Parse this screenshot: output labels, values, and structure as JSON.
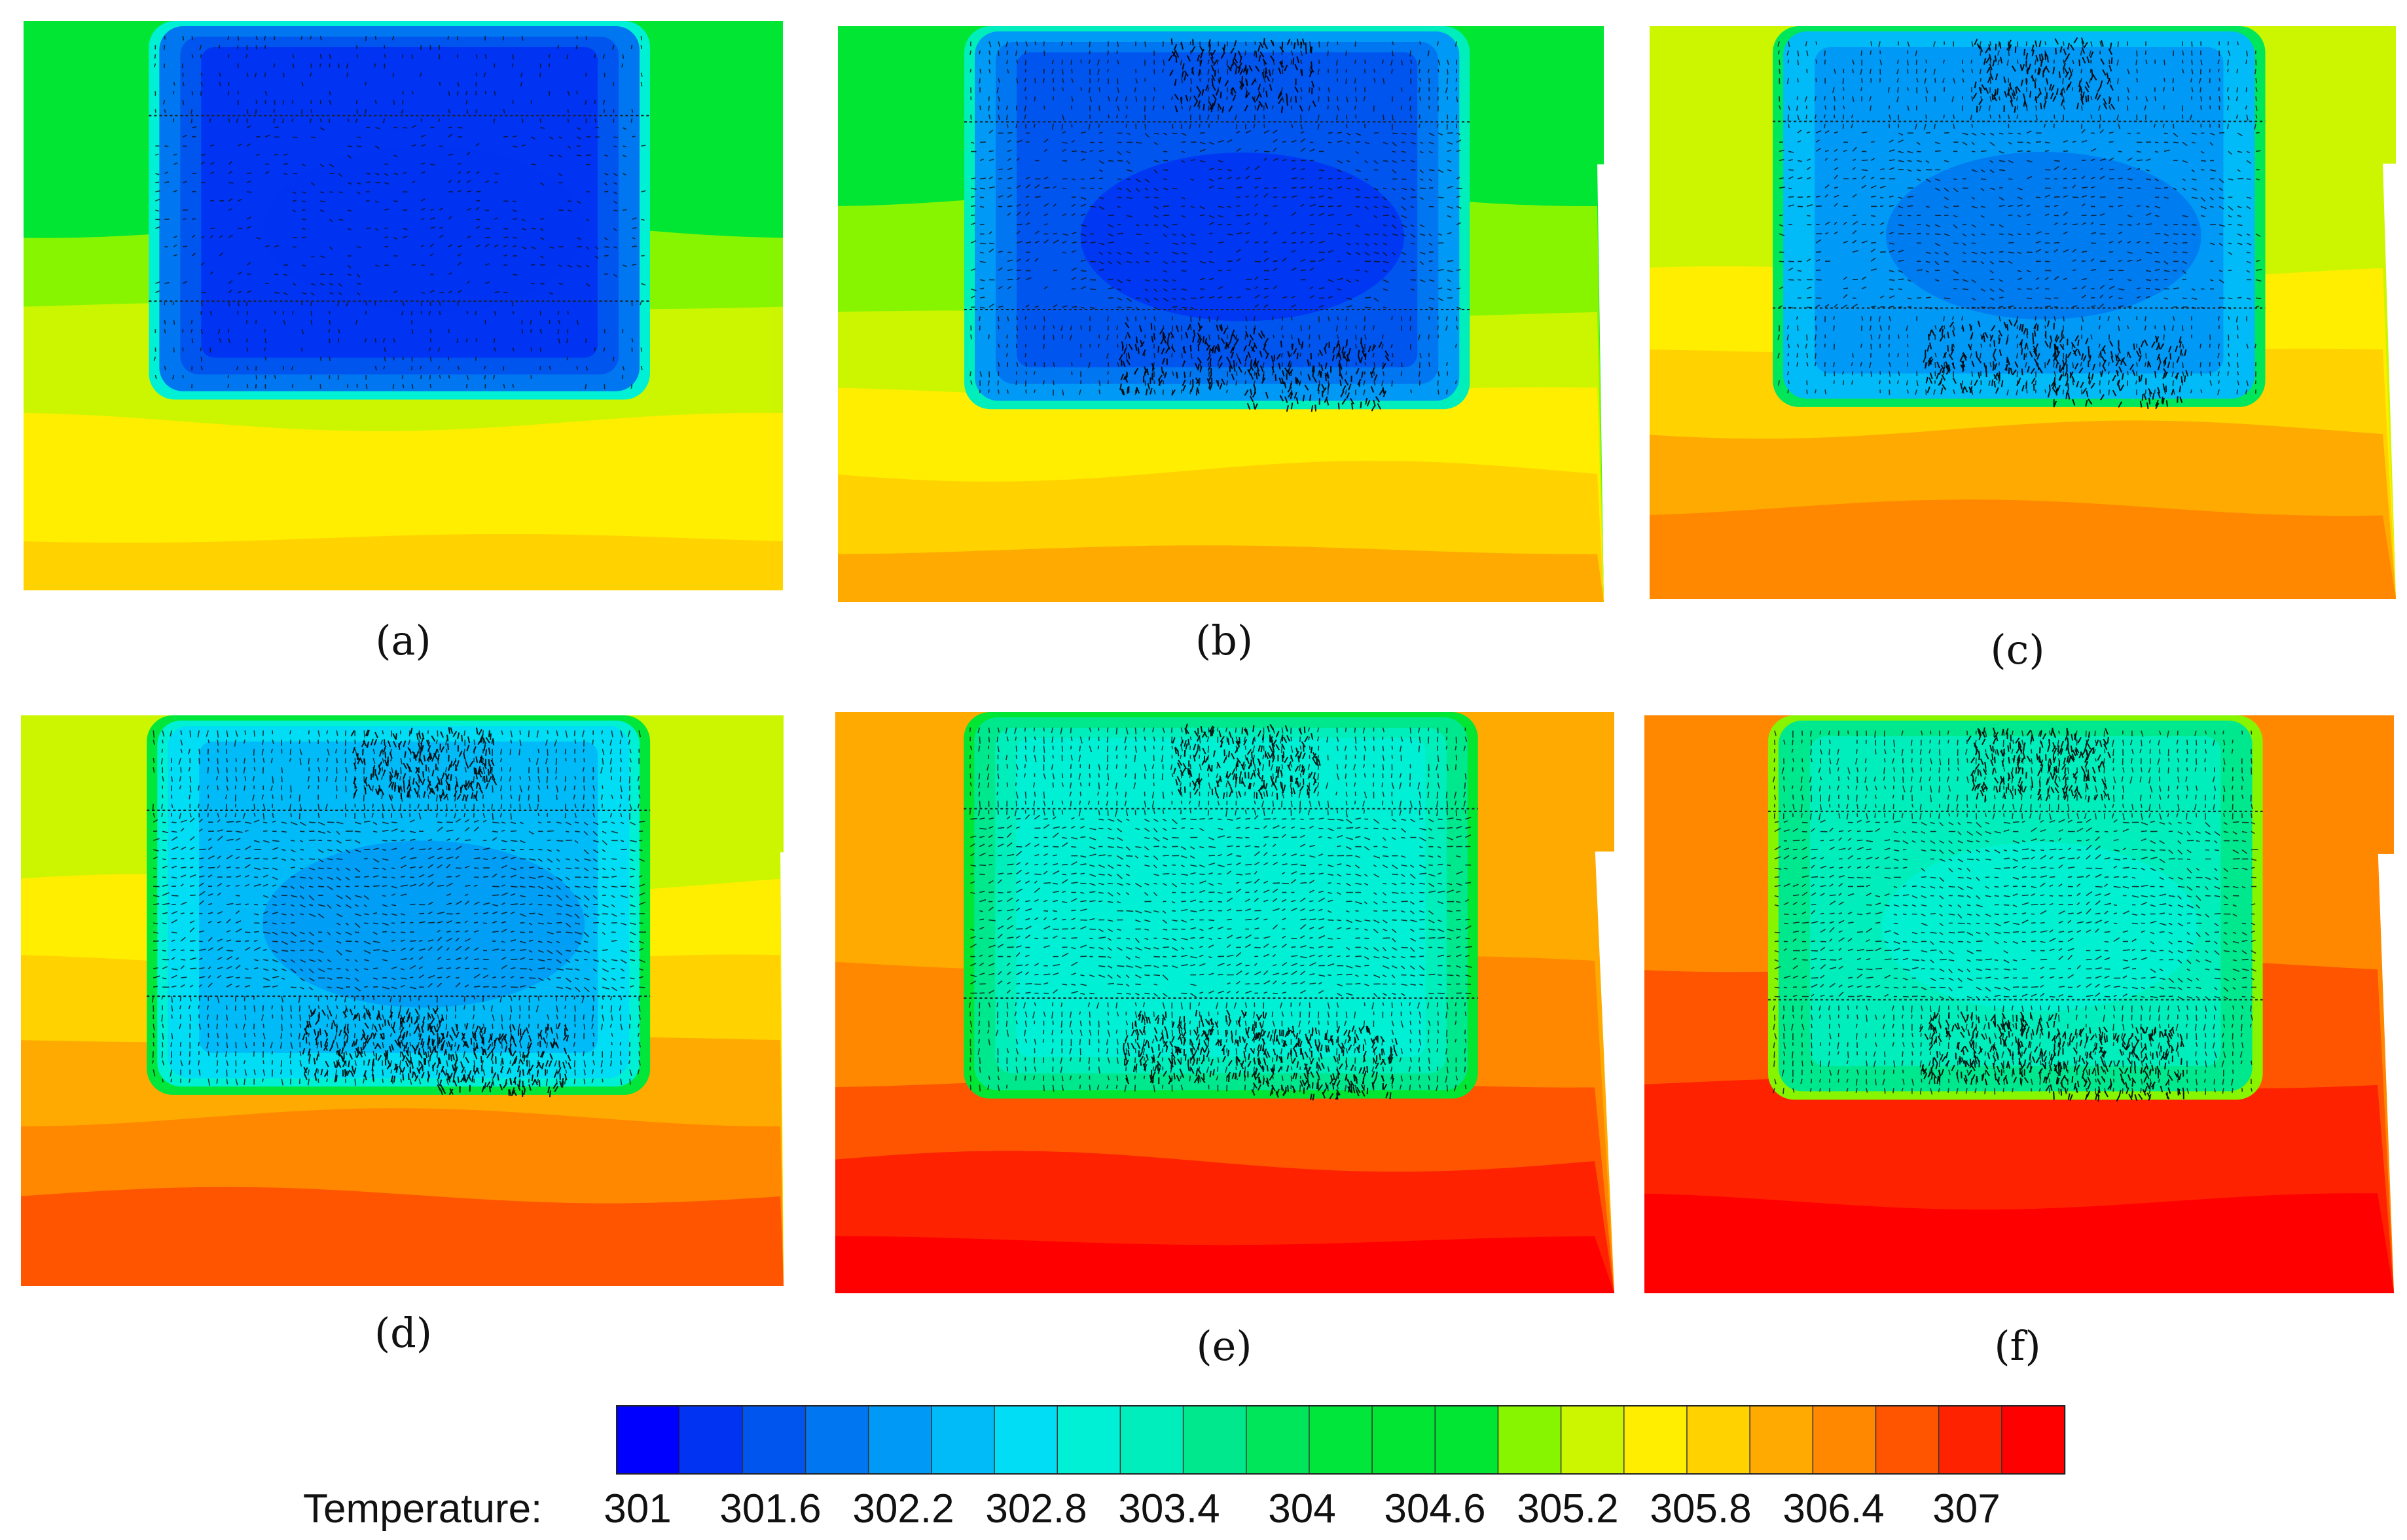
{
  "chart_data": {
    "type": "heatmap",
    "title": "",
    "colorbar": {
      "label": "Temperature:",
      "min": 301,
      "max": 307,
      "tick_labels": [
        "301",
        "301.6",
        "302.2",
        "302.8",
        "303.4",
        "304",
        "304.6",
        "305.2",
        "305.8",
        "306.4",
        "307"
      ],
      "levels": 22,
      "colors": [
        "#0000ff",
        "#0033f2",
        "#0055ee",
        "#0077f0",
        "#0099f5",
        "#00bbf8",
        "#00ddf4",
        "#00f0d6",
        "#00eebb",
        "#00e88e",
        "#00e65a",
        "#00e63a",
        "#00e633",
        "#00e633",
        "#88f500",
        "#ccf500",
        "#ffee00",
        "#ffd200",
        "#ffaa00",
        "#ff8800",
        "#ff5500",
        "#ff2200",
        "#ff0000"
      ]
    },
    "panels": [
      {
        "id": "a",
        "label": "(a)",
        "core_temp": 301.4,
        "bottom_temp": 305.6,
        "top_temp": 304.6,
        "vectors": "weak"
      },
      {
        "id": "b",
        "label": "(b)",
        "core_temp": 301.6,
        "bottom_temp": 305.8,
        "top_temp": 304.6,
        "vectors": "moderate"
      },
      {
        "id": "c",
        "label": "(c)",
        "core_temp": 302.0,
        "bottom_temp": 306.2,
        "top_temp": 305.0,
        "vectors": "moderate"
      },
      {
        "id": "d",
        "label": "(d)",
        "core_temp": 302.4,
        "bottom_temp": 306.5,
        "top_temp": 305.2,
        "vectors": "strong"
      },
      {
        "id": "e",
        "label": "(e)",
        "core_temp": 303.0,
        "bottom_temp": 306.9,
        "top_temp": 305.8,
        "vectors": "strong"
      },
      {
        "id": "f",
        "label": "(f)",
        "core_temp": 303.1,
        "bottom_temp": 307.0,
        "top_temp": 306.1,
        "vectors": "strong"
      }
    ]
  }
}
